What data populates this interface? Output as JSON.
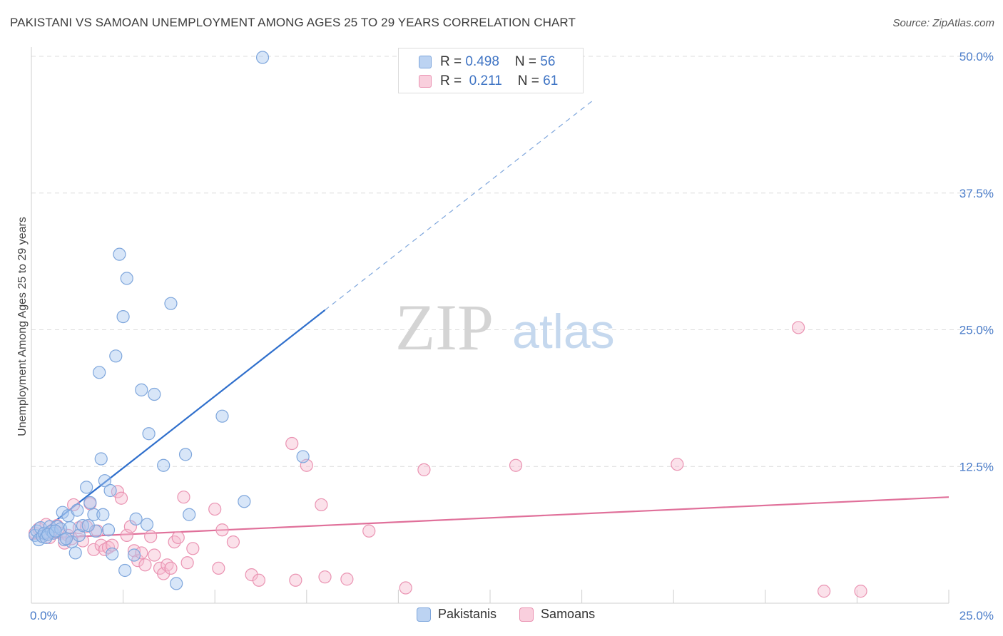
{
  "title": "PAKISTANI VS SAMOAN UNEMPLOYMENT AMONG AGES 25 TO 29 YEARS CORRELATION CHART",
  "source": "Source: ZipAtlas.com",
  "watermark": {
    "zip": "ZIP",
    "atlas": "atlas"
  },
  "legend": {
    "rows": [
      {
        "r_label": "R = ",
        "r_value": "0.498",
        "n_label": "N = ",
        "n_value": "56"
      },
      {
        "r_label": "R = ",
        "r_value": " 0.211",
        "n_label": "N = ",
        "n_value": "61"
      }
    ]
  },
  "bottom_legend": [
    "Pakistanis",
    "Samoans"
  ],
  "colors": {
    "pakistani_fill": "#a9c7ef",
    "pakistani_stroke": "#7ea6dc",
    "pakistani_line": "#2f6fcc",
    "samoan_fill": "#f6bdd0",
    "samoan_stroke": "#ea93b2",
    "samoan_line": "#e0709a",
    "tick_label": "#4a7cc9",
    "grid": "#dcdcdc"
  },
  "chart_data": {
    "type": "scatter",
    "title": "PAKISTANI VS SAMOAN UNEMPLOYMENT AMONG AGES 25 TO 29 YEARS CORRELATION CHART",
    "xlabel": "",
    "ylabel": "Unemployment Among Ages 25 to 29 years",
    "xlim": [
      0,
      25
    ],
    "ylim": [
      0,
      50
    ],
    "x_tick_labels": [
      "0.0%",
      "25.0%"
    ],
    "y_tick_labels": [
      "12.5%",
      "25.0%",
      "37.5%",
      "50.0%"
    ],
    "y_ticks": [
      12.5,
      25.0,
      37.5,
      50.0
    ],
    "grid": true,
    "legend_position": "top-center",
    "series": [
      {
        "name": "Pakistanis",
        "r": 0.498,
        "n": 56,
        "trend": {
          "x0": 0,
          "y0": 5.8,
          "x1": 8.0,
          "y1": 26.8,
          "dashed_to_x": 15.3
        },
        "points": [
          [
            0.1,
            6.2
          ],
          [
            0.15,
            6.6
          ],
          [
            0.2,
            5.8
          ],
          [
            0.25,
            6.9
          ],
          [
            0.3,
            6.1
          ],
          [
            0.35,
            6.4
          ],
          [
            0.4,
            6.0
          ],
          [
            0.5,
            7.0
          ],
          [
            0.55,
            6.6
          ],
          [
            0.6,
            6.4
          ],
          [
            0.7,
            7.0
          ],
          [
            0.8,
            6.8
          ],
          [
            0.85,
            8.3
          ],
          [
            0.9,
            5.8
          ],
          [
            1.0,
            8.0
          ],
          [
            1.1,
            5.6
          ],
          [
            1.2,
            4.6
          ],
          [
            1.25,
            8.5
          ],
          [
            1.3,
            6.2
          ],
          [
            1.4,
            7.1
          ],
          [
            1.5,
            10.6
          ],
          [
            1.6,
            9.2
          ],
          [
            1.7,
            8.1
          ],
          [
            1.75,
            6.6
          ],
          [
            1.9,
            13.2
          ],
          [
            1.95,
            8.1
          ],
          [
            2.0,
            11.2
          ],
          [
            2.1,
            6.7
          ],
          [
            2.15,
            10.3
          ],
          [
            2.2,
            4.5
          ],
          [
            2.3,
            22.6
          ],
          [
            2.4,
            31.9
          ],
          [
            2.5,
            26.2
          ],
          [
            2.55,
            3.0
          ],
          [
            2.6,
            29.7
          ],
          [
            2.8,
            4.4
          ],
          [
            2.85,
            7.7
          ],
          [
            3.0,
            19.5
          ],
          [
            3.15,
            7.2
          ],
          [
            3.2,
            15.5
          ],
          [
            3.35,
            19.1
          ],
          [
            3.6,
            12.6
          ],
          [
            3.8,
            27.4
          ],
          [
            3.95,
            1.8
          ],
          [
            4.2,
            13.6
          ],
          [
            4.3,
            8.1
          ],
          [
            5.2,
            17.1
          ],
          [
            5.8,
            9.3
          ],
          [
            6.3,
            49.9
          ],
          [
            7.4,
            13.4
          ],
          [
            1.85,
            21.1
          ],
          [
            1.05,
            6.9
          ],
          [
            0.45,
            6.3
          ],
          [
            0.65,
            6.6
          ],
          [
            1.55,
            7.1
          ],
          [
            0.95,
            5.9
          ]
        ]
      },
      {
        "name": "Samoans",
        "r": 0.211,
        "n": 61,
        "trend": {
          "x0": 0,
          "y0": 5.9,
          "x1": 25.0,
          "y1": 9.7
        },
        "points": [
          [
            0.1,
            6.4
          ],
          [
            0.2,
            6.8
          ],
          [
            0.3,
            6.1
          ],
          [
            0.4,
            7.2
          ],
          [
            0.5,
            6.0
          ],
          [
            0.6,
            6.6
          ],
          [
            0.7,
            7.1
          ],
          [
            0.8,
            6.4
          ],
          [
            0.9,
            5.5
          ],
          [
            1.0,
            6.2
          ],
          [
            1.1,
            5.9
          ],
          [
            1.15,
            9.0
          ],
          [
            1.3,
            6.9
          ],
          [
            1.4,
            5.7
          ],
          [
            1.5,
            7.0
          ],
          [
            1.6,
            9.1
          ],
          [
            1.7,
            4.9
          ],
          [
            1.8,
            6.6
          ],
          [
            1.9,
            5.3
          ],
          [
            2.0,
            4.9
          ],
          [
            2.1,
            5.1
          ],
          [
            2.2,
            5.3
          ],
          [
            2.35,
            10.2
          ],
          [
            2.45,
            9.6
          ],
          [
            2.6,
            6.2
          ],
          [
            2.7,
            7.0
          ],
          [
            2.8,
            4.8
          ],
          [
            2.9,
            3.9
          ],
          [
            3.0,
            4.6
          ],
          [
            3.1,
            3.5
          ],
          [
            3.25,
            6.1
          ],
          [
            3.35,
            4.4
          ],
          [
            3.5,
            3.2
          ],
          [
            3.6,
            2.7
          ],
          [
            3.7,
            3.5
          ],
          [
            3.8,
            3.2
          ],
          [
            3.9,
            5.6
          ],
          [
            4.0,
            6.0
          ],
          [
            4.15,
            9.7
          ],
          [
            4.25,
            3.7
          ],
          [
            4.4,
            5.0
          ],
          [
            5.0,
            8.6
          ],
          [
            5.1,
            3.2
          ],
          [
            5.2,
            6.7
          ],
          [
            5.5,
            5.6
          ],
          [
            6.0,
            2.6
          ],
          [
            6.2,
            2.1
          ],
          [
            7.1,
            14.6
          ],
          [
            7.2,
            2.1
          ],
          [
            7.5,
            12.6
          ],
          [
            7.9,
            9.0
          ],
          [
            8.0,
            2.4
          ],
          [
            8.6,
            2.2
          ],
          [
            9.2,
            6.6
          ],
          [
            10.2,
            1.4
          ],
          [
            10.7,
            12.2
          ],
          [
            13.2,
            12.6
          ],
          [
            17.6,
            12.7
          ],
          [
            20.9,
            25.2
          ],
          [
            21.6,
            1.1
          ],
          [
            22.6,
            1.1
          ]
        ]
      }
    ]
  }
}
